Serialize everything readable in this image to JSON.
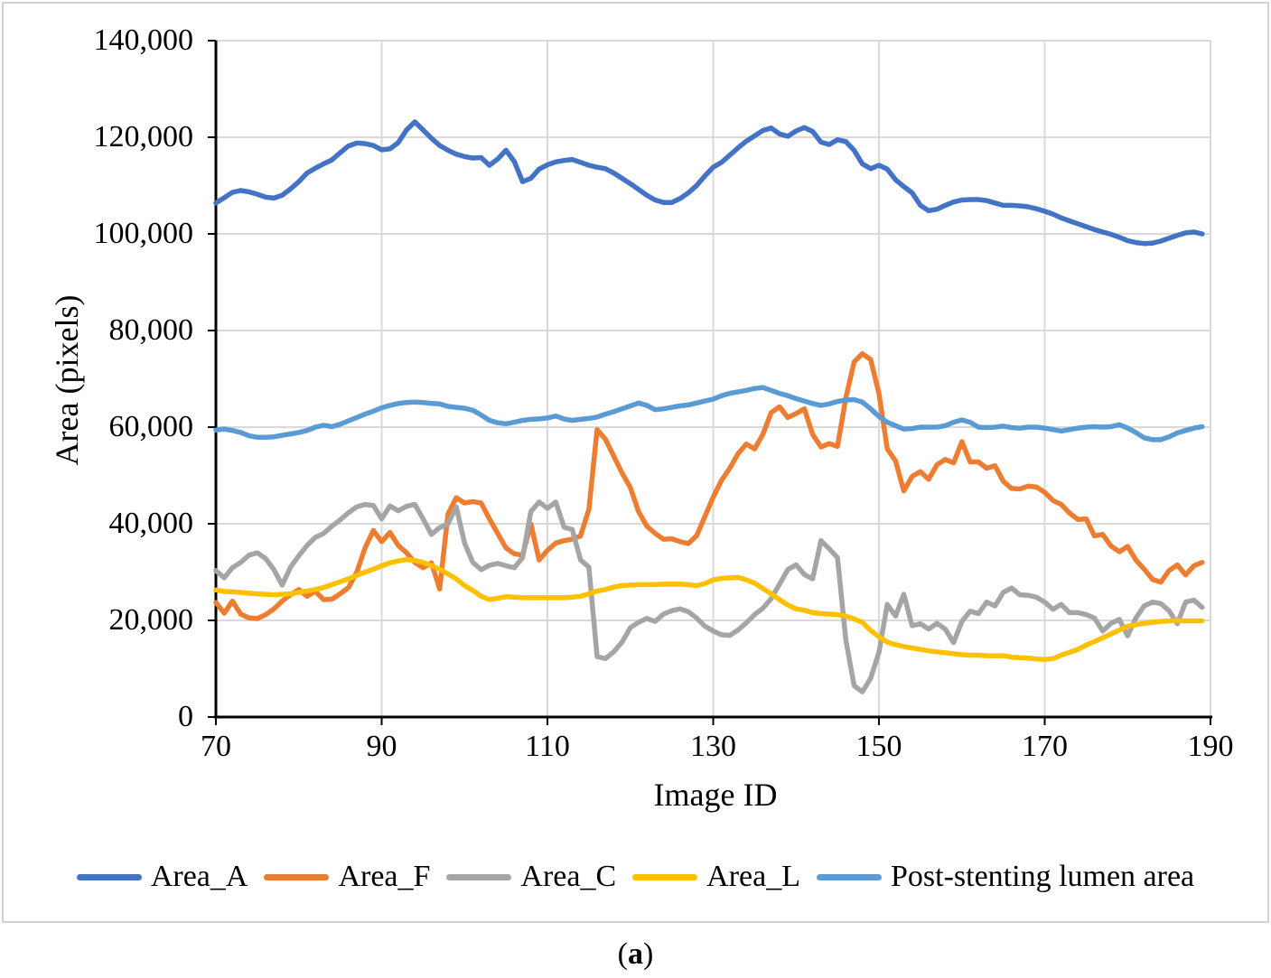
{
  "figure": {
    "caption": {
      "open": "(",
      "letter": "a",
      "close": ")"
    }
  },
  "style": {
    "grid_color": "#d9d9d9",
    "axis_color": "#000000",
    "frame_border_color": "#d2d2d2"
  },
  "chart_data": {
    "type": "line",
    "title": "",
    "xlabel": "Image ID",
    "ylabel": "Area (pixels)",
    "x_range": [
      70,
      190
    ],
    "ylim": [
      0,
      140000
    ],
    "grid": true,
    "legend_position": "bottom",
    "x_tick_values": [
      70,
      90,
      110,
      130,
      150,
      170,
      190
    ],
    "x_tick_labels": [
      "70",
      "90",
      "110",
      "130",
      "150",
      "170",
      "190"
    ],
    "y_tick_values": [
      0,
      20000,
      40000,
      60000,
      80000,
      100000,
      120000,
      140000
    ],
    "y_tick_labels": [
      "0",
      "20,000",
      "40,000",
      "60,000",
      "80,000",
      "100,000",
      "120,000",
      "140,000"
    ],
    "x_start": 70,
    "x_step": 1,
    "series": [
      {
        "name": "Area_A",
        "color": "#4472C4",
        "values": [
          106400,
          107500,
          108600,
          109000,
          108700,
          108200,
          107600,
          107400,
          108000,
          109300,
          110800,
          112600,
          113600,
          114500,
          115300,
          116800,
          118200,
          118800,
          118700,
          118300,
          117400,
          117600,
          118900,
          121500,
          123200,
          121500,
          119800,
          118300,
          117300,
          116500,
          116000,
          115700,
          115800,
          114200,
          115500,
          117300,
          115000,
          110800,
          111500,
          113400,
          114300,
          114900,
          115200,
          115400,
          114800,
          114200,
          113800,
          113500,
          112600,
          111500,
          110400,
          109200,
          108000,
          107000,
          106500,
          106500,
          107300,
          108500,
          110000,
          112000,
          113800,
          114800,
          116300,
          117800,
          119200,
          120300,
          121400,
          121900,
          120700,
          120200,
          121300,
          122000,
          121200,
          119000,
          118500,
          119500,
          119100,
          117300,
          114500,
          113500,
          114200,
          113400,
          111200,
          109800,
          108500,
          105900,
          104800,
          105100,
          105900,
          106600,
          107000,
          107100,
          107100,
          106900,
          106400,
          105900,
          105900,
          105800,
          105600,
          105200,
          104700,
          104100,
          103300,
          102700,
          102100,
          101500,
          100900,
          100400,
          99900,
          99300,
          98600,
          98200,
          98000,
          98100,
          98500,
          99100,
          99700,
          100200,
          100400,
          100000
        ]
      },
      {
        "name": "Area_F",
        "color": "#ED7D31",
        "values": [
          23700,
          21500,
          24000,
          21300,
          20500,
          20400,
          21200,
          22400,
          24000,
          25300,
          26400,
          25000,
          26000,
          24300,
          24400,
          25500,
          26800,
          30000,
          35000,
          38600,
          36300,
          38200,
          35500,
          34000,
          32000,
          30900,
          31900,
          26500,
          42000,
          45400,
          44300,
          44600,
          44300,
          41000,
          38000,
          35000,
          33800,
          33500,
          40000,
          32500,
          34500,
          36000,
          36500,
          36800,
          37500,
          43000,
          59500,
          57500,
          54000,
          50500,
          47500,
          42500,
          39500,
          38000,
          36800,
          36900,
          36300,
          35900,
          37500,
          41500,
          45500,
          49000,
          51500,
          54500,
          56500,
          55500,
          58500,
          63000,
          64200,
          62000,
          62800,
          63800,
          58500,
          55900,
          56600,
          56000,
          66000,
          73500,
          75200,
          74000,
          67000,
          55500,
          53000,
          46800,
          49800,
          50800,
          49200,
          52200,
          53300,
          52600,
          57000,
          52800,
          52800,
          51500,
          52000,
          48800,
          47300,
          47200,
          47800,
          47600,
          46500,
          44800,
          44000,
          42200,
          40900,
          41000,
          37500,
          37800,
          35400,
          34200,
          35300,
          32500,
          30600,
          28500,
          27900,
          30300,
          31500,
          29400,
          31300,
          32000
        ]
      },
      {
        "name": "Area_C",
        "color": "#A5A5A5",
        "values": [
          30300,
          28800,
          30900,
          32000,
          33500,
          34000,
          32800,
          30500,
          27300,
          31000,
          33400,
          35500,
          37200,
          38000,
          39500,
          40800,
          42300,
          43500,
          44000,
          43800,
          41000,
          43700,
          42700,
          43600,
          44000,
          41000,
          37800,
          39200,
          40000,
          43500,
          36000,
          32000,
          30500,
          31400,
          31800,
          31300,
          30900,
          33000,
          42500,
          44500,
          43200,
          44500,
          39300,
          38800,
          32500,
          31000,
          12500,
          12100,
          13500,
          15500,
          18500,
          19600,
          20400,
          19800,
          21300,
          22000,
          22400,
          21800,
          20500,
          18800,
          17800,
          17000,
          16900,
          18000,
          19500,
          21200,
          22500,
          24500,
          27500,
          30500,
          31500,
          29500,
          28600,
          36500,
          34800,
          33000,
          16000,
          6500,
          5200,
          8000,
          13400,
          23300,
          20900,
          25400,
          18900,
          19300,
          18200,
          19400,
          18200,
          15400,
          19800,
          21900,
          21400,
          23800,
          23000,
          25800,
          26700,
          25300,
          25200,
          24800,
          23800,
          22300,
          23300,
          21600,
          21600,
          21200,
          20500,
          17800,
          19400,
          20200,
          16800,
          20500,
          23000,
          23800,
          23500,
          22000,
          19300,
          23800,
          24200,
          22700
        ]
      },
      {
        "name": "Area_L",
        "color": "#FFC000",
        "values": [
          26300,
          26000,
          25900,
          25800,
          25600,
          25500,
          25400,
          25300,
          25400,
          25500,
          25800,
          26100,
          26400,
          26800,
          27400,
          28000,
          28600,
          29300,
          30000,
          30600,
          31300,
          31900,
          32300,
          32600,
          32400,
          32000,
          31300,
          30600,
          29600,
          28600,
          27200,
          26200,
          25000,
          24300,
          24600,
          24900,
          24800,
          24700,
          24700,
          24700,
          24700,
          24700,
          24700,
          24800,
          25000,
          25500,
          26100,
          26400,
          26900,
          27200,
          27300,
          27400,
          27400,
          27400,
          27500,
          27500,
          27500,
          27400,
          27200,
          27600,
          28400,
          28700,
          28800,
          28900,
          28400,
          27700,
          26600,
          25500,
          24300,
          23200,
          22400,
          22100,
          21600,
          21400,
          21300,
          21200,
          20900,
          20300,
          19600,
          17900,
          16600,
          15500,
          15000,
          14600,
          14300,
          14000,
          13700,
          13500,
          13300,
          13100,
          12900,
          12800,
          12800,
          12700,
          12700,
          12700,
          12400,
          12300,
          12200,
          12000,
          11900,
          12100,
          12800,
          13400,
          14000,
          14900,
          15600,
          16400,
          17200,
          18000,
          18800,
          19100,
          19400,
          19600,
          19800,
          19900,
          19900,
          19900,
          19900,
          19900
        ]
      },
      {
        "name": "Post-stenting lumen area",
        "color": "#5B9BD5",
        "values": [
          59400,
          59600,
          59300,
          58900,
          58200,
          57900,
          57900,
          58000,
          58300,
          58600,
          58900,
          59300,
          60000,
          60400,
          60100,
          60600,
          61300,
          62000,
          62700,
          63300,
          64000,
          64500,
          64900,
          65100,
          65200,
          65100,
          64900,
          64800,
          64300,
          64100,
          63900,
          63500,
          62500,
          61400,
          60900,
          60700,
          61000,
          61400,
          61600,
          61700,
          61900,
          62300,
          61700,
          61400,
          61600,
          61800,
          62100,
          62700,
          63200,
          63800,
          64400,
          65000,
          64500,
          63600,
          63800,
          64100,
          64400,
          64600,
          65000,
          65400,
          65800,
          66500,
          67000,
          67300,
          67600,
          68000,
          68200,
          67600,
          67000,
          66500,
          65900,
          65400,
          64900,
          64500,
          64800,
          65300,
          65600,
          65700,
          65200,
          63800,
          62200,
          61000,
          60300,
          59600,
          59700,
          60000,
          60000,
          60000,
          60300,
          61000,
          61500,
          61000,
          60000,
          59900,
          60000,
          60200,
          59900,
          59800,
          60000,
          60000,
          59800,
          59500,
          59200,
          59500,
          59800,
          60000,
          60100,
          60000,
          60100,
          60500,
          59800,
          58900,
          57800,
          57400,
          57400,
          58000,
          58800,
          59300,
          59800,
          60100
        ]
      }
    ]
  }
}
